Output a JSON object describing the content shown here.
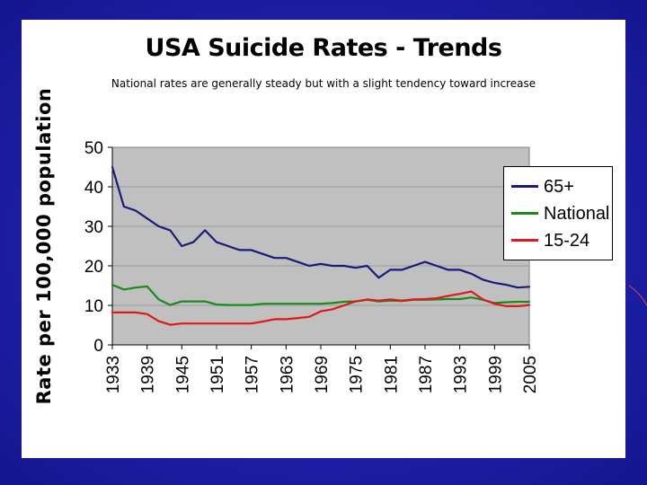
{
  "slide": {
    "background_color": "#1f22b0",
    "panel_color": "#ffffff"
  },
  "chart_data": {
    "type": "line",
    "title": "USA Suicide Rates - Trends",
    "subtitle": "National rates are generally steady but with a slight tendency toward increase",
    "ylabel": "Rate per 100,000 population",
    "xlabel": "",
    "ylim": [
      0,
      50
    ],
    "yticks": [
      0,
      10,
      20,
      30,
      40,
      50
    ],
    "xlim": [
      1933,
      2005
    ],
    "xticks": [
      1933,
      1939,
      1945,
      1951,
      1957,
      1963,
      1969,
      1975,
      1981,
      1987,
      1993,
      1999,
      2005
    ],
    "grid": true,
    "plot_background": "#c0c0c0",
    "legend_position": "right",
    "series": [
      {
        "name": "65+",
        "color": "#1a1a7a",
        "points": [
          [
            1933,
            45
          ],
          [
            1935,
            35
          ],
          [
            1937,
            34
          ],
          [
            1939,
            32
          ],
          [
            1941,
            30
          ],
          [
            1943,
            29
          ],
          [
            1945,
            25
          ],
          [
            1947,
            26
          ],
          [
            1949,
            29
          ],
          [
            1951,
            26
          ],
          [
            1953,
            25
          ],
          [
            1955,
            24
          ],
          [
            1957,
            24
          ],
          [
            1959,
            23
          ],
          [
            1961,
            22
          ],
          [
            1963,
            22
          ],
          [
            1965,
            21
          ],
          [
            1967,
            20
          ],
          [
            1969,
            20.5
          ],
          [
            1971,
            20
          ],
          [
            1973,
            20
          ],
          [
            1975,
            19.5
          ],
          [
            1977,
            20
          ],
          [
            1979,
            17
          ],
          [
            1981,
            19
          ],
          [
            1983,
            19
          ],
          [
            1985,
            20
          ],
          [
            1987,
            21
          ],
          [
            1989,
            20
          ],
          [
            1991,
            19
          ],
          [
            1993,
            19
          ],
          [
            1995,
            18
          ],
          [
            1997,
            16.5
          ],
          [
            1999,
            15.7
          ],
          [
            2001,
            15.2
          ],
          [
            2003,
            14.5
          ],
          [
            2005,
            14.7
          ]
        ]
      },
      {
        "name": "National",
        "color": "#1a8a1a",
        "points": [
          [
            1933,
            15.2
          ],
          [
            1935,
            14
          ],
          [
            1937,
            14.5
          ],
          [
            1939,
            14.8
          ],
          [
            1941,
            11.5
          ],
          [
            1943,
            10.1
          ],
          [
            1945,
            11
          ],
          [
            1947,
            11
          ],
          [
            1949,
            11
          ],
          [
            1951,
            10.2
          ],
          [
            1953,
            10.1
          ],
          [
            1955,
            10.1
          ],
          [
            1957,
            10.1
          ],
          [
            1959,
            10.4
          ],
          [
            1961,
            10.4
          ],
          [
            1963,
            10.4
          ],
          [
            1965,
            10.4
          ],
          [
            1967,
            10.4
          ],
          [
            1969,
            10.4
          ],
          [
            1971,
            10.6
          ],
          [
            1973,
            10.9
          ],
          [
            1975,
            11
          ],
          [
            1977,
            11.4
          ],
          [
            1979,
            11
          ],
          [
            1981,
            11.2
          ],
          [
            1983,
            11.1
          ],
          [
            1985,
            11.4
          ],
          [
            1987,
            11.4
          ],
          [
            1989,
            11.5
          ],
          [
            1991,
            11.6
          ],
          [
            1993,
            11.6
          ],
          [
            1995,
            12
          ],
          [
            1997,
            11.4
          ],
          [
            1999,
            10.6
          ],
          [
            2001,
            10.8
          ],
          [
            2003,
            10.9
          ],
          [
            2005,
            10.9
          ]
        ]
      },
      {
        "name": "15-24",
        "color": "#e01818",
        "points": [
          [
            1933,
            8.2
          ],
          [
            1935,
            8.2
          ],
          [
            1937,
            8.2
          ],
          [
            1939,
            7.8
          ],
          [
            1941,
            6
          ],
          [
            1943,
            5.1
          ],
          [
            1945,
            5.4
          ],
          [
            1947,
            5.4
          ],
          [
            1949,
            5.4
          ],
          [
            1951,
            5.4
          ],
          [
            1953,
            5.4
          ],
          [
            1955,
            5.4
          ],
          [
            1957,
            5.4
          ],
          [
            1959,
            5.9
          ],
          [
            1961,
            6.5
          ],
          [
            1963,
            6.5
          ],
          [
            1965,
            6.8
          ],
          [
            1967,
            7.1
          ],
          [
            1969,
            8.5
          ],
          [
            1971,
            9
          ],
          [
            1973,
            10
          ],
          [
            1975,
            11
          ],
          [
            1977,
            11.5
          ],
          [
            1979,
            11.2
          ],
          [
            1981,
            11.5
          ],
          [
            1983,
            11.2
          ],
          [
            1985,
            11.5
          ],
          [
            1987,
            11.6
          ],
          [
            1989,
            11.8
          ],
          [
            1991,
            12.4
          ],
          [
            1993,
            12.9
          ],
          [
            1995,
            13.5
          ],
          [
            1997,
            11.5
          ],
          [
            1999,
            10.4
          ],
          [
            2001,
            9.8
          ],
          [
            2003,
            9.8
          ],
          [
            2005,
            10.1
          ]
        ]
      }
    ]
  }
}
